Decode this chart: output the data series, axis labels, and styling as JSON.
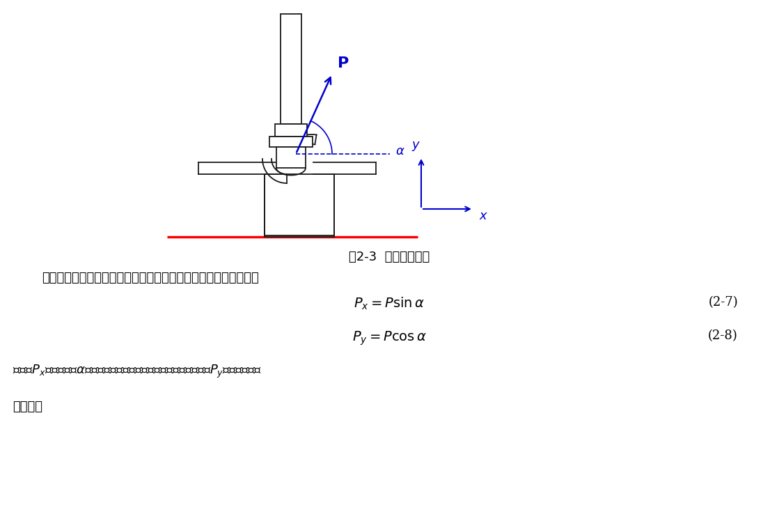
{
  "fig_width": 11.19,
  "fig_height": 7.35,
  "dpi": 100,
  "bg_color": "#ffffff",
  "dc": "#1a1a1a",
  "bc": "#0000cc",
  "rc": "#ff0000",
  "caption": "图2-3  翅片受力分析",
  "text1": "翅片通过换热管受到斜向上的压力，将其分解成轴向力和径向力：",
  "eq1_rhs": "(2-7)",
  "eq2_rhs": "(2-8)",
  "text2": "式中，$P_x$为轴向力，$\\alpha$是换热管和翅片接触点切线与水平线的夹角，$P_y$是翅片受到的",
  "text3": "径向力。"
}
